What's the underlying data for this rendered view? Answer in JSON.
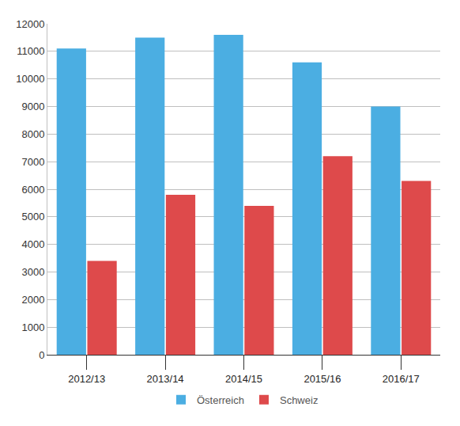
{
  "chart_data": {
    "type": "bar",
    "categories": [
      "2012/13",
      "2013/14",
      "2014/15",
      "2015/16",
      "2016/17"
    ],
    "series": [
      {
        "name": "Österreich",
        "color": "#4baee2",
        "values": [
          11100,
          11500,
          11600,
          10600,
          9000
        ]
      },
      {
        "name": "Schweiz",
        "color": "#de4a4b",
        "values": [
          3400,
          5800,
          5400,
          7200,
          6300
        ]
      }
    ],
    "ylim": [
      0,
      12000
    ],
    "yticks": [
      0,
      1000,
      2000,
      3000,
      4000,
      5000,
      6000,
      7000,
      8000,
      9000,
      10000,
      11000,
      12000
    ],
    "grid": true,
    "legend": "bottom"
  }
}
